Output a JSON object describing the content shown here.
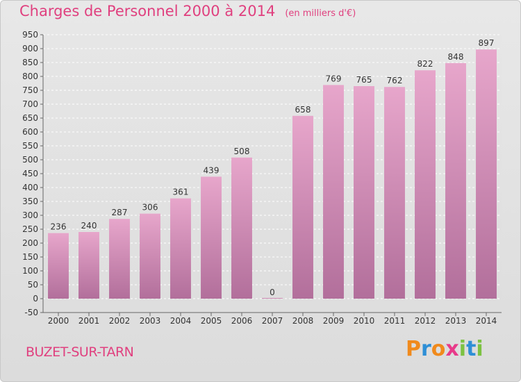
{
  "header": {
    "title": "Charges de Personnel 2000 à 2014",
    "subtitle": "(en milliers d'€)"
  },
  "footer": {
    "commune": "BUZET-SUR-TARN",
    "logo_text": "Proxiti",
    "logo_colors": [
      "#f08a1c",
      "#2e8fd6",
      "#f08a1c",
      "#e83a8a",
      "#7cc242",
      "#2e8fd6",
      "#7cc242"
    ]
  },
  "chart_data": {
    "type": "bar",
    "categories": [
      "2000",
      "2001",
      "2002",
      "2003",
      "2004",
      "2005",
      "2006",
      "2007",
      "2008",
      "2009",
      "2010",
      "2011",
      "2012",
      "2013",
      "2014"
    ],
    "values": [
      236,
      240,
      287,
      306,
      361,
      439,
      508,
      0,
      658,
      769,
      765,
      762,
      822,
      848,
      897
    ],
    "data_labels": [
      "236",
      "240",
      "287",
      "306",
      "361",
      "439",
      "508",
      "0",
      "658",
      "769",
      "765",
      "762",
      "822",
      "848",
      "897"
    ],
    "title": "Charges de Personnel 2000 à 2014",
    "subtitle": "(en milliers d'€)",
    "xlabel": "",
    "ylabel": "",
    "ylim": [
      -50,
      950
    ],
    "ytick_step": 50,
    "grid": true,
    "bar_color_top": "#e7a6cb",
    "bar_color_bottom": "#b26f9b",
    "text_color": "#333333",
    "accent_color": "#e0407f"
  }
}
